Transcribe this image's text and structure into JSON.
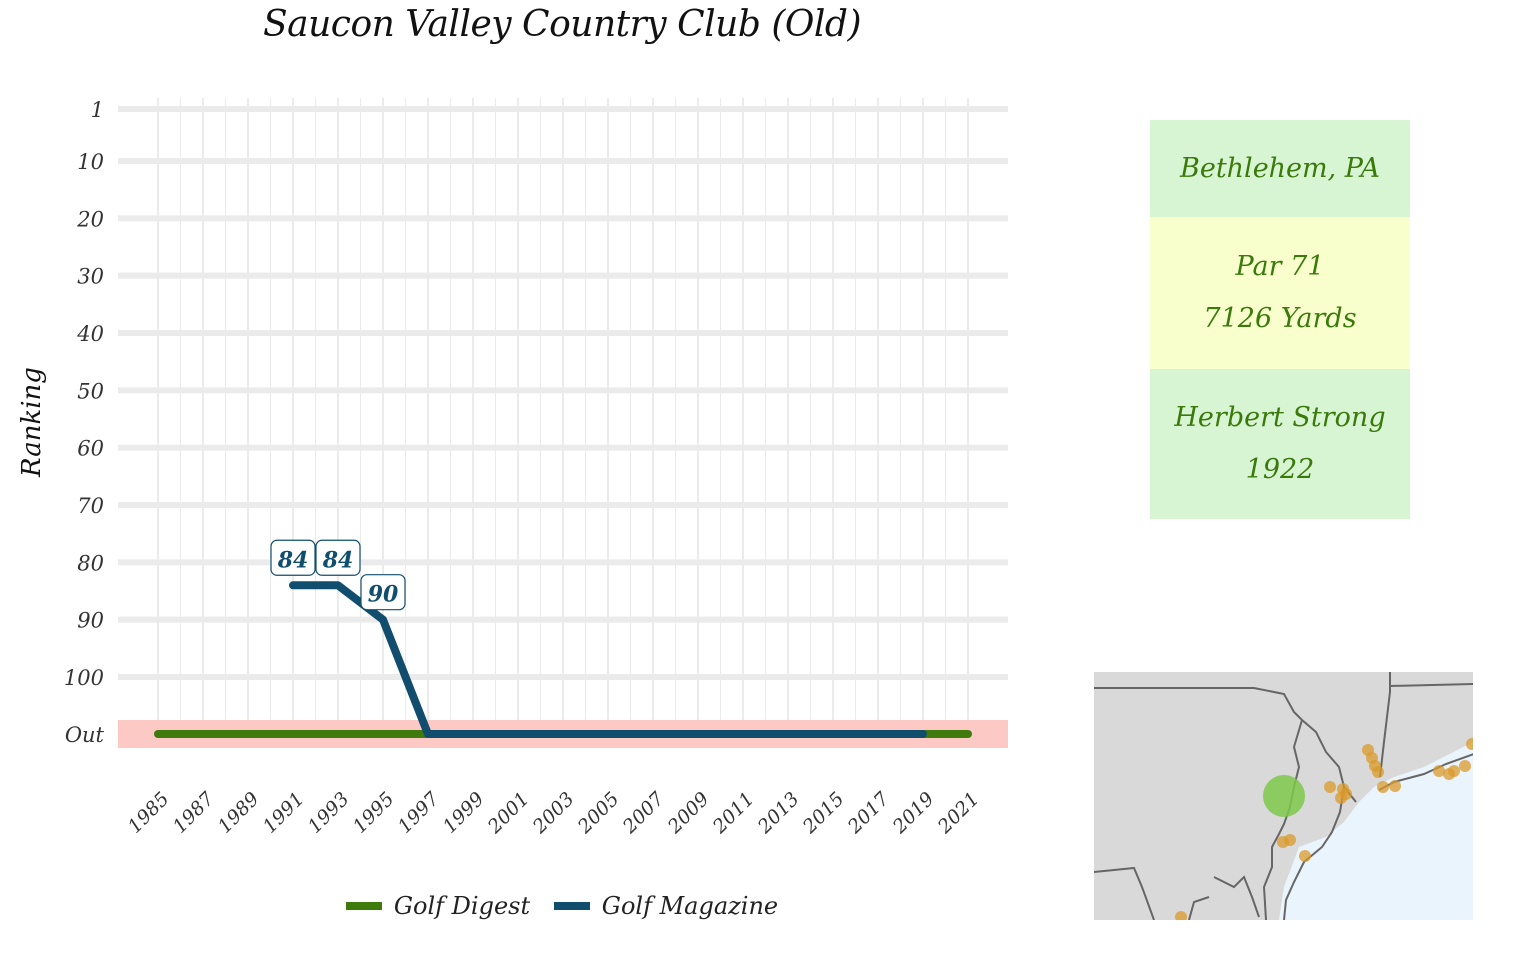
{
  "page_title": "Saucon Valley Country Club (Old)",
  "chart_data": {
    "type": "line",
    "title": "Saucon Valley Country Club (Old)",
    "xlabel": "",
    "ylabel": "Ranking",
    "y_reversed": true,
    "y_ticks": [
      "1",
      "10",
      "20",
      "30",
      "40",
      "50",
      "60",
      "70",
      "80",
      "90",
      "100",
      "Out"
    ],
    "y_tick_values": [
      1,
      10,
      20,
      30,
      40,
      50,
      60,
      70,
      80,
      90,
      100,
      110
    ],
    "out_value": 110,
    "x_ticks": [
      "1985",
      "1987",
      "1989",
      "1991",
      "1993",
      "1995",
      "1997",
      "1999",
      "2001",
      "2003",
      "2005",
      "2007",
      "2009",
      "2011",
      "2013",
      "2015",
      "2017",
      "2019",
      "2021"
    ],
    "xlim": [
      1985,
      2021
    ],
    "ylim": [
      1,
      110
    ],
    "grid": true,
    "legend_position": "bottom",
    "out_band_color": "#fcc9c4",
    "series": [
      {
        "name": "Golf Digest",
        "color": "#3f7a0c",
        "x": [
          1985,
          1987,
          1989,
          1991,
          1993,
          1995,
          1997,
          1999,
          2001,
          2003,
          2005,
          2007,
          2009,
          2011,
          2013,
          2015,
          2017,
          2019,
          2021
        ],
        "y": [
          110,
          110,
          110,
          110,
          110,
          110,
          110,
          110,
          110,
          110,
          110,
          110,
          110,
          110,
          110,
          110,
          110,
          110,
          110
        ],
        "labels": []
      },
      {
        "name": "Golf Magazine",
        "color": "#114e6e",
        "x": [
          1991,
          1993,
          1995,
          1997,
          1999,
          2001,
          2003,
          2005,
          2007,
          2009,
          2011,
          2013,
          2015,
          2017,
          2019
        ],
        "y": [
          84,
          84,
          90,
          110,
          110,
          110,
          110,
          110,
          110,
          110,
          110,
          110,
          110,
          110,
          110
        ],
        "labels": [
          {
            "x": 1991,
            "y": 84,
            "text": "84"
          },
          {
            "x": 1993,
            "y": 84,
            "text": "84"
          },
          {
            "x": 1995,
            "y": 90,
            "text": "90"
          }
        ]
      }
    ]
  },
  "info": {
    "location": "Bethlehem, PA",
    "par": "Par 71",
    "yards": "7126 Yards",
    "architect": "Herbert Strong",
    "year": "1922",
    "colors": {
      "green_box": "#d8f5d3",
      "yellow_box": "#f8ffcc",
      "text": "#3a7a0a"
    }
  },
  "map": {
    "highlight_color": "#7cc84a",
    "marker_color": "#d99a2b",
    "land_color": "#d9d9d9",
    "water_color": "#eaf4fc",
    "border_color": "#666666"
  }
}
